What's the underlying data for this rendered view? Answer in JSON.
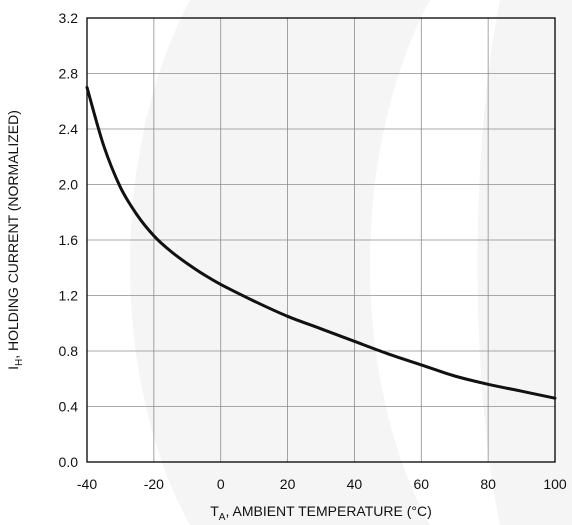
{
  "chart_data": {
    "type": "line",
    "xlabel_parts": {
      "main": "T",
      "sub": "A",
      "rest": ", AMBIENT TEMPERATURE (°C)"
    },
    "ylabel_parts": {
      "main": "I",
      "sub": "H",
      "rest": ",  HOLDING CURRENT (NORMALIZED)"
    },
    "xlim": [
      -40,
      100
    ],
    "ylim": [
      0,
      3.2
    ],
    "xticks": [
      -40,
      -20,
      0,
      20,
      40,
      60,
      80,
      100
    ],
    "yticks": [
      0.0,
      0.4,
      0.8,
      1.2,
      1.6,
      2.0,
      2.4,
      2.8,
      3.2
    ],
    "xtick_labels": [
      "-40",
      "-20",
      "0",
      "20",
      "40",
      "60",
      "80",
      "100"
    ],
    "ytick_labels": [
      "0.0",
      "0.4",
      "0.8",
      "1.2",
      "1.6",
      "2.0",
      "2.4",
      "2.8",
      "3.2"
    ],
    "grid": true,
    "series": [
      {
        "x": [
          -40,
          -35,
          -30,
          -25,
          -20,
          -15,
          -10,
          -5,
          0,
          10,
          20,
          30,
          40,
          50,
          60,
          70,
          80,
          90,
          100
        ],
        "y": [
          2.7,
          2.28,
          1.98,
          1.78,
          1.63,
          1.52,
          1.43,
          1.35,
          1.28,
          1.16,
          1.05,
          0.96,
          0.87,
          0.78,
          0.7,
          0.62,
          0.56,
          0.51,
          0.46
        ]
      }
    ]
  }
}
